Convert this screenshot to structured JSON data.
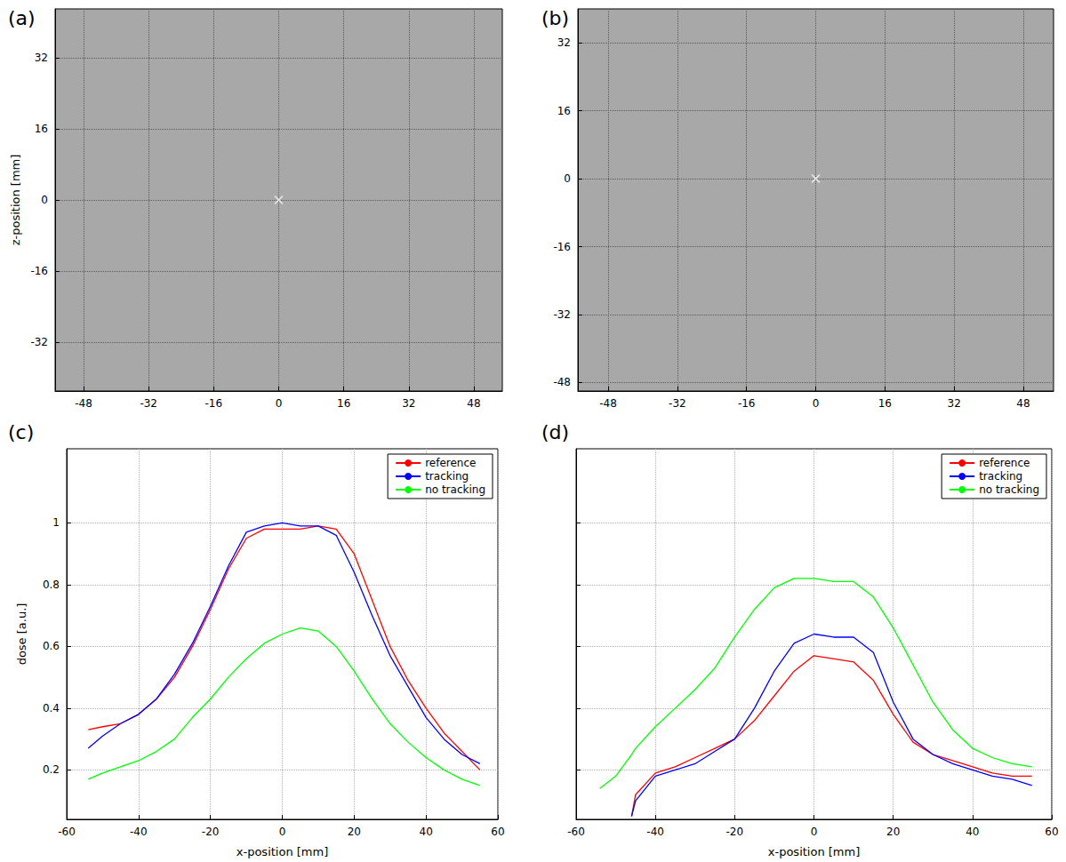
{
  "chart_data": [
    {
      "title": "(a)",
      "type": "scatter",
      "x": [
        0
      ],
      "y": [
        0
      ],
      "marker": "x",
      "color": "#ffffff",
      "xlim": [
        -55,
        55
      ],
      "xticks": [
        -48,
        -32,
        -16,
        0,
        16,
        32,
        48
      ],
      "ylim": [
        -43,
        43
      ],
      "yticks": [
        -32,
        -16,
        0,
        16,
        32
      ],
      "ylabel": "z-position [mm]",
      "grid": true
    },
    {
      "title": "(b)",
      "type": "scatter",
      "x": [
        0
      ],
      "y": [
        0
      ],
      "marker": "x",
      "color": "#ffffff",
      "xlim": [
        -55,
        55
      ],
      "xticks": [
        -48,
        -32,
        -16,
        0,
        16,
        32,
        48
      ],
      "ylim": [
        -50,
        40
      ],
      "yticks": [
        -48,
        -32,
        -16,
        0,
        16,
        32
      ],
      "grid": true
    },
    {
      "title": "(c)",
      "type": "line",
      "x": [
        -54,
        -50,
        -45,
        -40,
        -35,
        -30,
        -25,
        -20,
        -15,
        -10,
        -5,
        0,
        5,
        10,
        15,
        20,
        25,
        30,
        35,
        40,
        45,
        50,
        55
      ],
      "series": [
        {
          "name": "reference",
          "color": "#ff0000",
          "values": [
            0.33,
            0.34,
            0.35,
            0.38,
            0.43,
            0.5,
            0.6,
            0.72,
            0.85,
            0.95,
            0.98,
            0.98,
            0.98,
            0.99,
            0.98,
            0.9,
            0.75,
            0.6,
            0.49,
            0.4,
            0.32,
            0.26,
            0.2
          ]
        },
        {
          "name": "tracking",
          "color": "#0000ff",
          "values": [
            0.27,
            0.31,
            0.35,
            0.38,
            0.43,
            0.51,
            0.61,
            0.73,
            0.86,
            0.97,
            0.99,
            1.0,
            0.99,
            0.99,
            0.96,
            0.84,
            0.7,
            0.57,
            0.47,
            0.37,
            0.3,
            0.25,
            0.22
          ]
        },
        {
          "name": "no tracking",
          "color": "#00ff00",
          "values": [
            0.17,
            0.19,
            0.21,
            0.23,
            0.26,
            0.3,
            0.37,
            0.43,
            0.5,
            0.56,
            0.61,
            0.64,
            0.66,
            0.65,
            0.6,
            0.52,
            0.43,
            0.35,
            0.29,
            0.24,
            0.2,
            0.17,
            0.15
          ]
        }
      ],
      "xlim": [
        -60,
        60
      ],
      "xticks": [
        -60,
        -40,
        -20,
        0,
        20,
        40,
        60
      ],
      "ylim": [
        0.04,
        1.24
      ],
      "yticks": [
        0.2,
        0.4,
        0.6,
        0.8,
        1
      ],
      "xlabel": "x-position [mm]",
      "ylabel": "dose [a.u.]",
      "legend": "top-right",
      "grid": true
    },
    {
      "title": "(d)",
      "type": "line",
      "x": [
        -54,
        -50,
        -46,
        -45,
        -40,
        -35,
        -30,
        -25,
        -20,
        -15,
        -10,
        -5,
        0,
        5,
        10,
        15,
        20,
        25,
        30,
        35,
        40,
        45,
        50,
        55
      ],
      "series": [
        {
          "name": "reference",
          "color": "#ff0000",
          "values": [
            null,
            null,
            0.05,
            0.12,
            0.19,
            0.21,
            0.24,
            0.27,
            0.3,
            0.36,
            0.44,
            0.52,
            0.57,
            0.56,
            0.55,
            0.49,
            0.38,
            0.29,
            0.25,
            0.23,
            0.21,
            0.19,
            0.18,
            0.18
          ]
        },
        {
          "name": "tracking",
          "color": "#0000ff",
          "values": [
            null,
            null,
            0.05,
            0.1,
            0.18,
            0.2,
            0.22,
            0.26,
            0.3,
            0.4,
            0.52,
            0.61,
            0.64,
            0.63,
            0.63,
            0.58,
            0.42,
            0.3,
            0.25,
            0.22,
            0.2,
            0.18,
            0.17,
            0.15
          ]
        },
        {
          "name": "no tracking",
          "color": "#00ff00",
          "values": [
            0.14,
            0.18,
            0.25,
            0.27,
            0.34,
            0.4,
            0.46,
            0.53,
            0.63,
            0.72,
            0.79,
            0.82,
            0.82,
            0.81,
            0.81,
            0.76,
            0.66,
            0.54,
            0.42,
            0.33,
            0.27,
            0.24,
            0.22,
            0.21
          ]
        }
      ],
      "xlim": [
        -60,
        60
      ],
      "xticks": [
        -60,
        -40,
        -20,
        0,
        20,
        40,
        60
      ],
      "ylim": [
        0.04,
        1.24
      ],
      "yticks": [
        0.2,
        0.4,
        0.6,
        0.8,
        1
      ],
      "xlabel": "x-position [mm]",
      "legend": "top-right",
      "grid": true,
      "tick_labels": "x"
    }
  ]
}
